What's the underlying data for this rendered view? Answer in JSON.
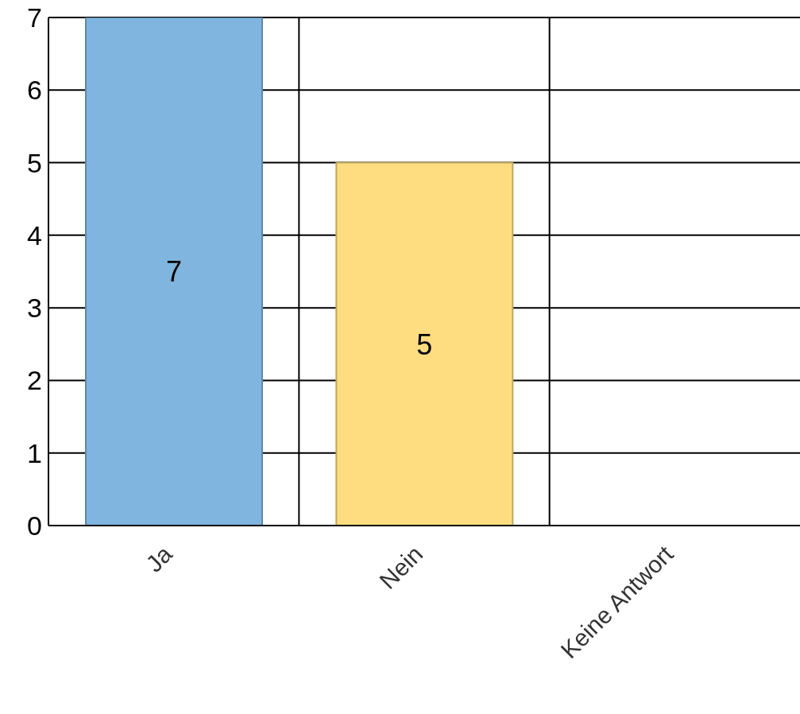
{
  "chart_data": {
    "type": "bar",
    "categories": [
      "Ja",
      "Nein",
      "Keine Antwort"
    ],
    "values": [
      7,
      5,
      0
    ],
    "colors": [
      "#7fb5de",
      "#fddd80",
      "#a0c8e8"
    ],
    "value_labels": [
      "7",
      "5",
      null
    ],
    "ylim": [
      0,
      7
    ],
    "yticks": [
      0,
      1,
      2,
      3,
      4,
      5,
      6,
      7
    ],
    "grid": true
  }
}
